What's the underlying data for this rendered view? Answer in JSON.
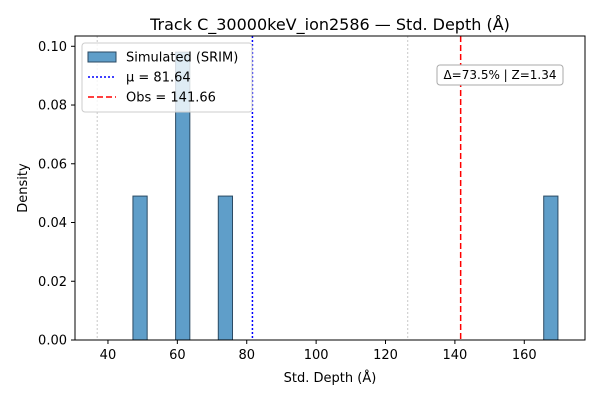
{
  "chart_data": {
    "type": "bar",
    "title": "Track C_30000keV_ion2586 — Std. Depth (Å)",
    "xlabel": "Std. Depth (Å)",
    "ylabel": "Density",
    "xlim": [
      30.5,
      177.5
    ],
    "ylim": [
      0,
      0.1035
    ],
    "xticks": [
      40,
      60,
      80,
      100,
      120,
      140,
      160
    ],
    "yticks": [
      0.0,
      0.02,
      0.04,
      0.06,
      0.08,
      0.1
    ],
    "xtick_labels": [
      "40",
      "60",
      "80",
      "100",
      "120",
      "140",
      "160"
    ],
    "ytick_labels": [
      "0.00",
      "0.02",
      "0.04",
      "0.06",
      "0.08",
      "0.10"
    ],
    "bars": [
      {
        "x0": 47.2,
        "x1": 51.3,
        "value": 0.049
      },
      {
        "x0": 59.5,
        "x1": 63.6,
        "value": 0.098
      },
      {
        "x0": 71.8,
        "x1": 75.9,
        "value": 0.049
      },
      {
        "x0": 165.6,
        "x1": 169.7,
        "value": 0.049
      }
    ],
    "vlines": [
      {
        "x": 36.9,
        "style": "dotted",
        "color": "#c8c8c8"
      },
      {
        "x": 126.4,
        "style": "dotted",
        "color": "#c8c8c8"
      },
      {
        "x": 81.64,
        "style": "dotted",
        "color": "#0000ff"
      },
      {
        "x": 141.66,
        "style": "dashed",
        "color": "#ff0000"
      }
    ],
    "legend": {
      "position": "top-left",
      "entries": [
        {
          "label": "Simulated (SRIM)",
          "kind": "patch",
          "color": "#5f9ec9"
        },
        {
          "label": "μ = 81.64",
          "kind": "dotted",
          "color": "#0000ff"
        },
        {
          "label": "Obs = 141.66",
          "kind": "dashed",
          "color": "#ff0000"
        }
      ]
    },
    "annotation": "Δ=73.5% | Z=1.34",
    "grid": false,
    "colors": {
      "bar_fill": "#5f9ec9",
      "bar_edge": "#2b4a63"
    }
  }
}
